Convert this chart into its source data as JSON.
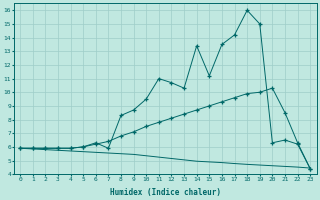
{
  "xlabel": "Humidex (Indice chaleur)",
  "bg_color": "#c0e8e0",
  "line_color": "#006868",
  "grid_color": "#9ecec8",
  "xlim": [
    -0.5,
    23.5
  ],
  "ylim": [
    4,
    16.5
  ],
  "xticks": [
    0,
    1,
    2,
    3,
    4,
    5,
    6,
    7,
    8,
    9,
    10,
    11,
    12,
    13,
    14,
    15,
    16,
    17,
    18,
    19,
    20,
    21,
    22,
    23
  ],
  "yticks": [
    4,
    5,
    6,
    7,
    8,
    9,
    10,
    11,
    12,
    13,
    14,
    15,
    16
  ],
  "line1_x": [
    0,
    1,
    2,
    3,
    4,
    5,
    6,
    7,
    8,
    9,
    10,
    11,
    12,
    13,
    14,
    15,
    16,
    17,
    18,
    19,
    20,
    21,
    22,
    23
  ],
  "line1_y": [
    5.9,
    5.9,
    5.9,
    5.9,
    5.9,
    6.0,
    6.3,
    5.9,
    8.3,
    8.7,
    9.5,
    11.0,
    10.7,
    10.3,
    13.4,
    11.2,
    13.5,
    14.2,
    16.0,
    15.0,
    6.3,
    6.5,
    6.2,
    4.4
  ],
  "line2_x": [
    0,
    1,
    2,
    3,
    4,
    5,
    6,
    7,
    8,
    9,
    10,
    11,
    12,
    13,
    14,
    15,
    16,
    17,
    18,
    19,
    20,
    21,
    22,
    23
  ],
  "line2_y": [
    5.9,
    5.9,
    5.9,
    5.9,
    5.9,
    6.0,
    6.2,
    6.4,
    6.8,
    7.1,
    7.5,
    7.8,
    8.1,
    8.4,
    8.7,
    9.0,
    9.3,
    9.6,
    9.9,
    10.0,
    10.3,
    8.5,
    6.3,
    4.4
  ],
  "line3_x": [
    0,
    1,
    2,
    3,
    4,
    5,
    6,
    7,
    8,
    9,
    10,
    11,
    12,
    13,
    14,
    15,
    16,
    17,
    18,
    19,
    20,
    21,
    22,
    23
  ],
  "line3_y": [
    5.9,
    5.85,
    5.8,
    5.75,
    5.7,
    5.65,
    5.6,
    5.55,
    5.5,
    5.45,
    5.35,
    5.25,
    5.15,
    5.05,
    4.95,
    4.9,
    4.85,
    4.78,
    4.72,
    4.67,
    4.62,
    4.57,
    4.52,
    4.45
  ]
}
